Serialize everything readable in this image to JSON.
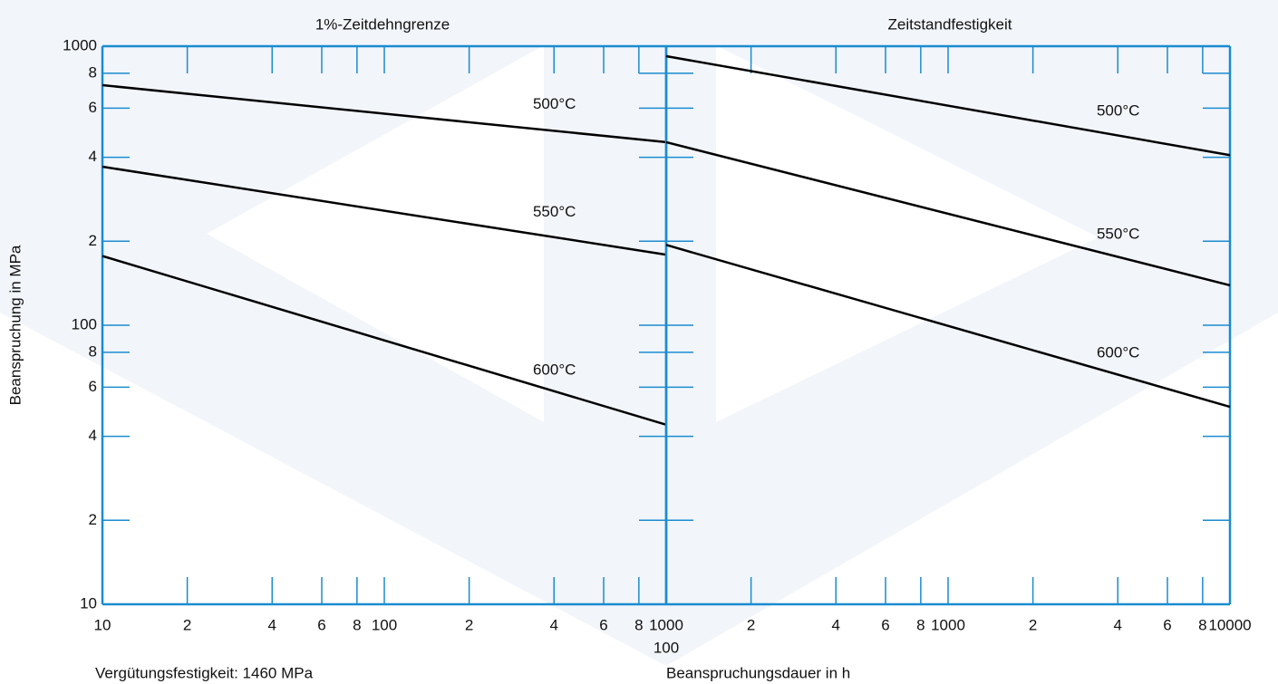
{
  "chart_data": [
    {
      "type": "line",
      "title": "1%-Zeitdehngrenze",
      "y_label": "Beanspruchung in MPa",
      "annotation": "Vergütungsfestigkeit: 1460 MPa",
      "log_x": true,
      "log_y": true,
      "color": "#1a8ccf",
      "xlim": [
        10,
        1000
      ],
      "xticks": [
        10,
        {
          "value": 20,
          "label": "2"
        },
        {
          "value": 40,
          "label": "4"
        },
        {
          "value": 60,
          "label": "6"
        },
        {
          "value": 80,
          "label": "8"
        },
        100,
        {
          "value": 200,
          "label": "2"
        },
        {
          "value": 400,
          "label": "4"
        },
        {
          "value": 600,
          "label": "6"
        },
        {
          "value": 800,
          "label": "8"
        },
        1000
      ],
      "ylim": [
        10,
        1000
      ],
      "yticks": [
        1000,
        {
          "value": 800,
          "label": "8"
        },
        {
          "value": 600,
          "label": "6"
        },
        {
          "value": 400,
          "label": "4"
        },
        {
          "value": 200,
          "label": "2"
        },
        100,
        {
          "value": 80,
          "label": "8"
        },
        {
          "value": 60,
          "label": "6"
        },
        {
          "value": 40,
          "label": "4"
        },
        {
          "value": 20,
          "label": "2"
        },
        10
      ],
      "series": [
        {
          "name": "500°C",
          "color": "#000000",
          "x": [
            10,
            1000
          ],
          "values": [
            725,
            453
          ]
        },
        {
          "name": "550°C",
          "color": "#000000",
          "x": [
            10,
            1000
          ],
          "values": [
            370,
            179
          ]
        },
        {
          "name": "600°C",
          "color": "#000000",
          "x": [
            10,
            1000
          ],
          "values": [
            177,
            44
          ]
        }
      ]
    },
    {
      "type": "line",
      "title": "Zeitstandfestigkeit",
      "x_label": "Beanspruchungsdauer in h",
      "log_x": true,
      "log_y": true,
      "color": "#1a8ccf",
      "xlim": [
        100,
        10000
      ],
      "xticks": [
        100,
        {
          "value": 200,
          "label": "2"
        },
        {
          "value": 400,
          "label": "4"
        },
        {
          "value": 600,
          "label": "6"
        },
        {
          "value": 800,
          "label": "8"
        },
        1000,
        {
          "value": 2000,
          "label": "2"
        },
        {
          "value": 4000,
          "label": "4"
        },
        {
          "value": 6000,
          "label": "6"
        },
        {
          "value": 8000,
          "label": "8"
        },
        10000
      ],
      "ylim": [
        10,
        1000
      ],
      "series": [
        {
          "name": "500°C",
          "color": "#000000",
          "x": [
            100,
            10000
          ],
          "values": [
            921,
            407
          ]
        },
        {
          "name": "550°C",
          "color": "#000000",
          "x": [
            100,
            10000
          ],
          "values": [
            453,
            139
          ]
        },
        {
          "name": "600°C",
          "color": "#000000",
          "x": [
            100,
            10000
          ],
          "values": [
            194,
            51
          ]
        }
      ]
    }
  ]
}
